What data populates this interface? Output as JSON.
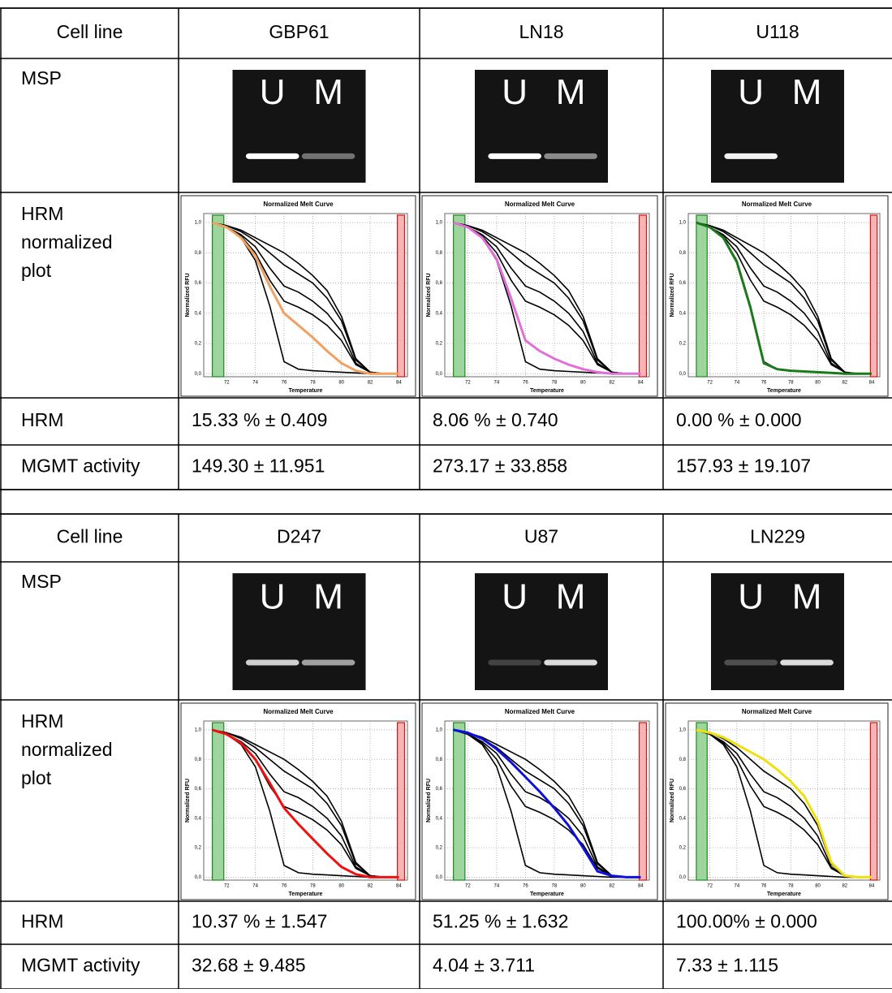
{
  "blocks": [
    {
      "header": {
        "label": "Cell line",
        "cells": [
          "GBP61",
          "LN18",
          "U118"
        ]
      },
      "msp": {
        "label": "MSP",
        "gels": [
          {
            "lanes": [
              "U",
              "M"
            ]
          },
          {
            "lanes": [
              "U",
              "M"
            ]
          },
          {
            "lanes": [
              "U",
              "M"
            ]
          }
        ]
      },
      "hrm_plot": {
        "label": [
          "HRM",
          "normalized",
          "plot"
        ],
        "plots": [
          {
            "type": "line",
            "color": "#f0a060",
            "values": [
              1,
              0.97,
              0.9,
              0.78,
              0.58,
              0.4,
              0.32,
              0.24,
              0.15,
              0.07,
              0.02,
              0,
              0,
              0
            ]
          },
          {
            "type": "line",
            "color": "#e070d8",
            "values": [
              1,
              0.97,
              0.9,
              0.76,
              0.5,
              0.22,
              0.15,
              0.1,
              0.06,
              0.03,
              0.01,
              0,
              0,
              0
            ]
          },
          {
            "type": "line",
            "color": "#1a7a1a",
            "values": [
              1,
              0.97,
              0.9,
              0.74,
              0.44,
              0.07,
              0.03,
              0.02,
              0.015,
              0.01,
              0.005,
              0,
              0,
              0
            ]
          }
        ]
      },
      "hrm": {
        "label": "HRM",
        "cells": [
          "15.33 % ± 0.409",
          "8.06 % ± 0.740",
          "0.00 % ± 0.000"
        ]
      },
      "mgmt": {
        "label": "MGMT activity",
        "cells": [
          "149.30 ± 11.951",
          "273.17 ± 33.858",
          "157.93 ± 19.107"
        ]
      }
    },
    {
      "header": {
        "label": "Cell line",
        "cells": [
          "D247",
          "U87",
          "LN229"
        ]
      },
      "msp": {
        "label": "MSP",
        "gels": [
          {
            "lanes": [
              "U",
              "M"
            ]
          },
          {
            "lanes": [
              "U",
              "M"
            ]
          },
          {
            "lanes": [
              "U",
              "M"
            ]
          }
        ]
      },
      "hrm_plot": {
        "label": [
          "HRM",
          "normalized",
          "plot"
        ],
        "plots": [
          {
            "type": "line",
            "color": "#ee1111",
            "values": [
              1,
              0.97,
              0.91,
              0.8,
              0.64,
              0.47,
              0.36,
              0.26,
              0.16,
              0.07,
              0.02,
              0,
              0,
              0
            ]
          },
          {
            "type": "line",
            "color": "#1010dd",
            "values": [
              1,
              0.98,
              0.94,
              0.87,
              0.78,
              0.68,
              0.58,
              0.47,
              0.35,
              0.2,
              0.04,
              0.01,
              0,
              0
            ]
          },
          {
            "type": "line",
            "color": "#f0e010",
            "values": [
              1,
              0.98,
              0.95,
              0.9,
              0.85,
              0.8,
              0.73,
              0.65,
              0.55,
              0.38,
              0.1,
              0.01,
              0,
              0
            ]
          }
        ]
      },
      "hrm": {
        "label": "HRM",
        "cells": [
          "10.37 % ± 1.547",
          "51.25 % ± 1.632",
          "100.00% ± 0.000"
        ]
      },
      "mgmt": {
        "label": "MGMT activity",
        "cells": [
          "32.68 ± 9.485",
          "4.04 ± 3.711",
          "7.33 ± 1.115"
        ]
      }
    }
  ],
  "melt_curve": {
    "title": "Normalized Melt Curve",
    "xlabel": "Temperature",
    "ylabel": "Normalized RFU",
    "xlim": [
      70.4,
      84.6
    ],
    "ylim": [
      -0.02,
      1.06
    ],
    "xticks": [
      72,
      74,
      76,
      78,
      80,
      82,
      84
    ],
    "yticks": [
      {
        "value": 0,
        "label": "0,0"
      },
      {
        "value": 0.2,
        "label": "0,2"
      },
      {
        "value": 0.4,
        "label": "0,4"
      },
      {
        "value": 0.6,
        "label": "0,6"
      },
      {
        "value": 0.8,
        "label": "0,8"
      },
      {
        "value": 1,
        "label": "1,0"
      }
    ],
    "x": [
      71,
      72,
      73,
      74,
      75,
      76,
      77,
      78,
      79,
      80,
      81,
      82,
      83,
      84
    ],
    "reference_series": [
      {
        "color": "#000000",
        "values": [
          1,
          0.97,
          0.9,
          0.75,
          0.45,
          0.08,
          0.03,
          0.02,
          0.015,
          0.01,
          0.005,
          0,
          0,
          0
        ]
      },
      {
        "color": "#000000",
        "values": [
          1,
          0.98,
          0.95,
          0.9,
          0.85,
          0.8,
          0.73,
          0.65,
          0.55,
          0.38,
          0.1,
          0.01,
          0,
          0
        ]
      },
      {
        "color": "#000000",
        "values": [
          1,
          0.98,
          0.94,
          0.88,
          0.8,
          0.72,
          0.66,
          0.6,
          0.5,
          0.35,
          0.09,
          0.01,
          0,
          0
        ]
      },
      {
        "color": "#000000",
        "values": [
          1,
          0.97,
          0.92,
          0.84,
          0.7,
          0.58,
          0.54,
          0.48,
          0.4,
          0.28,
          0.07,
          0.01,
          0,
          0
        ]
      },
      {
        "color": "#000000",
        "values": [
          1,
          0.97,
          0.91,
          0.8,
          0.62,
          0.48,
          0.44,
          0.39,
          0.32,
          0.22,
          0.06,
          0.01,
          0,
          0
        ]
      }
    ]
  }
}
